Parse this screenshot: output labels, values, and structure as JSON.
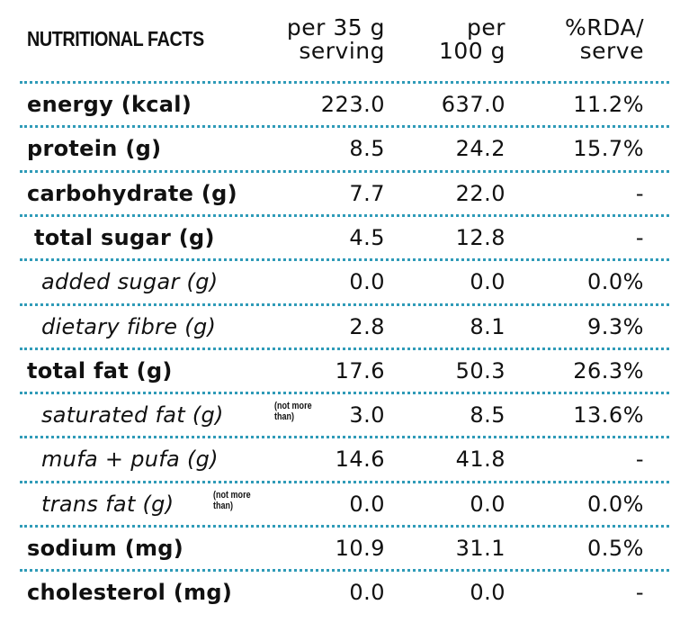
{
  "title": "NUTRITIONAL FACTS",
  "columns": [
    {
      "line1": "per 35 g",
      "line2": "serving"
    },
    {
      "line1": "per",
      "line2": "100 g"
    },
    {
      "line1": "%RDA/",
      "line2": "serve"
    }
  ],
  "rows": [
    {
      "label": "energy (kcal)",
      "note": "",
      "serving": "223.0",
      "per100": "637.0",
      "rda": "11.2%"
    },
    {
      "label": "protein (g)",
      "note": "",
      "serving": "8.5",
      "per100": "24.2",
      "rda": "15.7%"
    },
    {
      "label": "carbohydrate (g)",
      "note": "",
      "serving": "7.7",
      "per100": "22.0",
      "rda": "-"
    },
    {
      "label": "total sugar (g)",
      "note": "",
      "serving": "4.5",
      "per100": "12.8",
      "rda": "-"
    },
    {
      "label": "added sugar (g)",
      "note": "",
      "serving": "0.0",
      "per100": "0.0",
      "rda": "0.0%"
    },
    {
      "label": "dietary fibre (g)",
      "note": "",
      "serving": "2.8",
      "per100": "8.1",
      "rda": "9.3%"
    },
    {
      "label": "total fat (g)",
      "note": "",
      "serving": "17.6",
      "per100": "50.3",
      "rda": "26.3%"
    },
    {
      "label": "saturated fat (g)",
      "note": "(not more than)",
      "note_line1": "(not more",
      "note_line2": "than)",
      "serving": "3.0",
      "per100": "8.5",
      "rda": "13.6%"
    },
    {
      "label": "mufa + pufa (g)",
      "note": "",
      "serving": "14.6",
      "per100": "41.8",
      "rda": "-"
    },
    {
      "label": "trans fat (g)",
      "note": "(not more than)",
      "note_line1": "(not more",
      "note_line2": "than)",
      "serving": "0.0",
      "per100": "0.0",
      "rda": "0.0%"
    },
    {
      "label": "sodium (mg)",
      "note": "",
      "serving": "10.9",
      "per100": "31.1",
      "rda": "0.5%"
    },
    {
      "label": "cholesterol (mg)",
      "note": "",
      "serving": "0.0",
      "per100": "0.0",
      "rda": "-"
    }
  ],
  "colors": {
    "text": "#111111",
    "dotted_rule": "#2f9bb8",
    "background": "#ffffff"
  }
}
